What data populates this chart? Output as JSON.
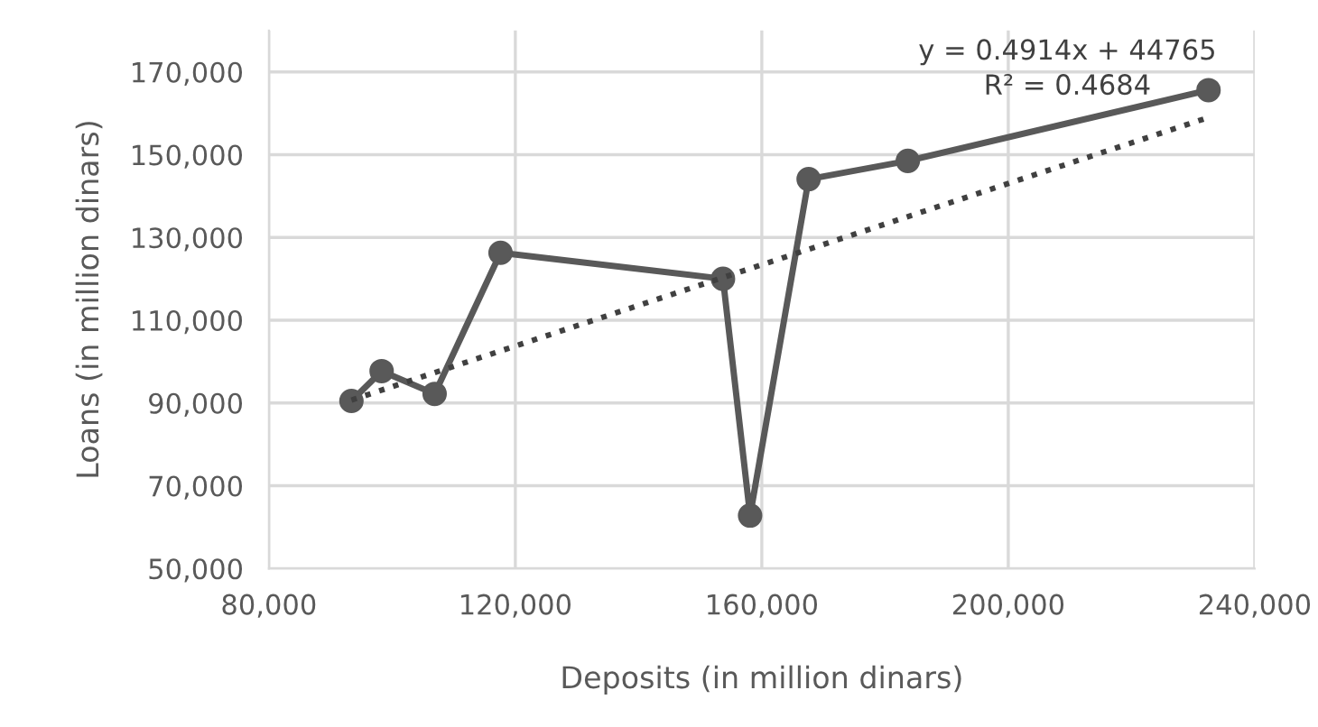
{
  "chart_data": {
    "type": "line",
    "xlabel": "Deposits (in million dinars)",
    "ylabel": "Loans (in million dinars)",
    "x": [
      93400,
      98300,
      106900,
      117600,
      153700,
      158100,
      167600,
      183700,
      232500
    ],
    "series": [
      {
        "color": "#595959",
        "marker": "circle",
        "line_style": "solid",
        "values": [
          90500,
          97700,
          92200,
          126300,
          120000,
          62800,
          144100,
          148500,
          165600
        ]
      },
      {
        "type": "line",
        "color": "#404040",
        "marker": "none",
        "line_style": "dotted",
        "x": [
          93400,
          232500
        ],
        "values": [
          90700,
          159000
        ]
      }
    ],
    "xlim": [
      80000,
      240000
    ],
    "ylim": [
      50000,
      180000
    ],
    "xticks": [
      {
        "value": 80000,
        "label": "80,000"
      },
      {
        "value": 120000,
        "label": "120,000"
      },
      {
        "value": 160000,
        "label": "160,000"
      },
      {
        "value": 200000,
        "label": "200,000"
      },
      {
        "value": 240000,
        "label": "240,000"
      }
    ],
    "yticks": [
      {
        "value": 50000,
        "label": "50,000"
      },
      {
        "value": 70000,
        "label": "70,000"
      },
      {
        "value": 90000,
        "label": "90,000"
      },
      {
        "value": 110000,
        "label": "110,000"
      },
      {
        "value": 130000,
        "label": "130,000"
      },
      {
        "value": 150000,
        "label": "150,000"
      },
      {
        "value": 170000,
        "label": "170,000"
      }
    ],
    "grid": true,
    "legend": false,
    "annotations": [
      "y = 0.4914x + 44765",
      "R² = 0.4684"
    ]
  }
}
